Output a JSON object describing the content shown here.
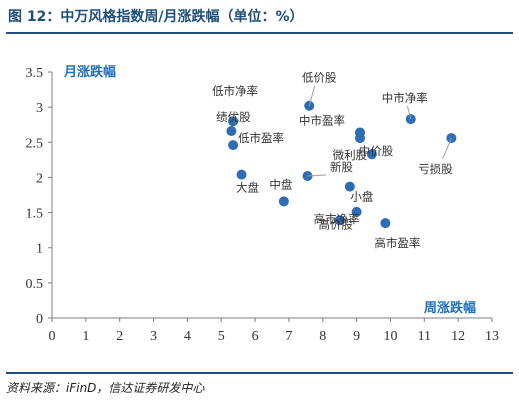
{
  "header": {
    "title": "图 12：中万风格指数周/月涨跌幅（单位：%）"
  },
  "footer": {
    "source": "资料来源：iFinD，信达证券研发中心"
  },
  "colors": {
    "accent": "#1f4e79",
    "point": "#2e6db4",
    "axis_label": "#1f6fbf"
  },
  "chart_data": {
    "type": "scatter",
    "title": "",
    "xlabel": "周涨跌幅",
    "ylabel": "月涨跌幅",
    "xlim": [
      0,
      13
    ],
    "ylim": [
      0,
      3.5
    ],
    "xticks": [
      0,
      1,
      2,
      3,
      4,
      5,
      6,
      7,
      8,
      9,
      10,
      11,
      12,
      13
    ],
    "yticks": [
      0,
      0.5,
      1,
      1.5,
      2,
      2.5,
      3,
      3.5
    ],
    "yticks_labels": [
      "0",
      "0.5",
      "1",
      "1.5",
      "2",
      "2.5",
      "3",
      "3.5"
    ],
    "grid": false,
    "points": [
      {
        "label": "低价股",
        "x": 7.6,
        "y": 3.02
      },
      {
        "label": "低市净率",
        "x": 5.35,
        "y": 2.8
      },
      {
        "label": "绩优股",
        "x": 5.3,
        "y": 2.66
      },
      {
        "label": "低市盈率",
        "x": 5.35,
        "y": 2.46
      },
      {
        "label": "大盘",
        "x": 5.6,
        "y": 2.04
      },
      {
        "label": "中盘",
        "x": 6.85,
        "y": 1.66
      },
      {
        "label": "中市盈率",
        "x": 9.1,
        "y": 2.64
      },
      {
        "label": "中价股",
        "x": 9.1,
        "y": 2.56
      },
      {
        "label": "微利股",
        "x": 9.45,
        "y": 2.33
      },
      {
        "label": "中市净率",
        "x": 10.6,
        "y": 2.83
      },
      {
        "label": "亏损股",
        "x": 11.8,
        "y": 2.56
      },
      {
        "label": "新股",
        "x": 7.55,
        "y": 2.02
      },
      {
        "label": "小盘",
        "x": 8.8,
        "y": 1.87
      },
      {
        "label": "高市净率",
        "x": 9.0,
        "y": 1.51
      },
      {
        "label": "高价股",
        "x": 8.5,
        "y": 1.39
      },
      {
        "label": "高市盈率",
        "x": 9.85,
        "y": 1.35
      }
    ]
  }
}
